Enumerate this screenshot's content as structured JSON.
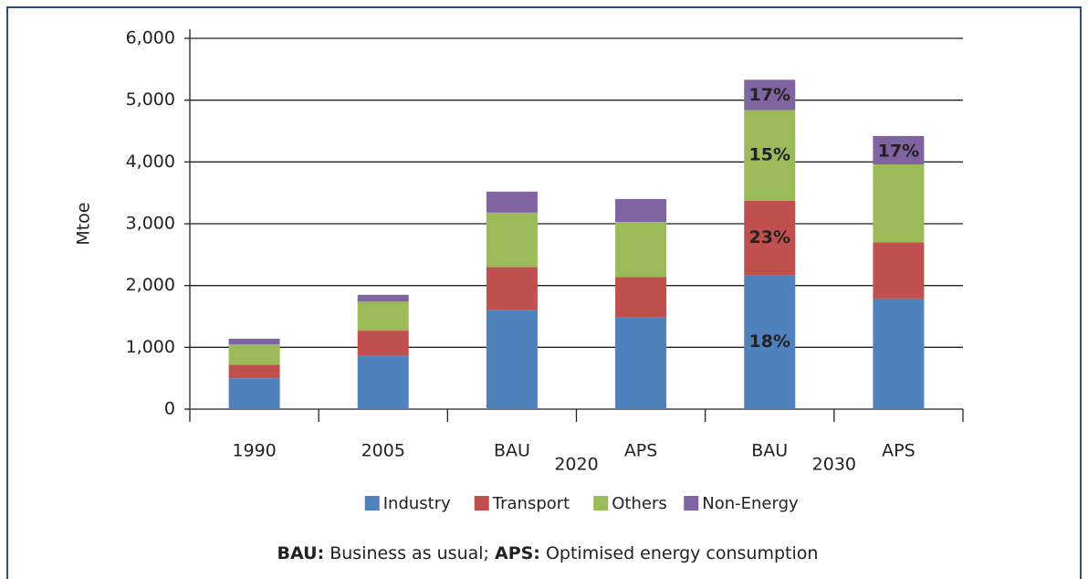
{
  "chart_data": {
    "type": "stacked-bar",
    "y_label": "Mtoe",
    "categories": [
      "1990",
      "2005",
      "BAU",
      "APS",
      "BAU",
      "APS"
    ],
    "groups": [
      {
        "label": "2020",
        "categories": [
          2,
          3
        ]
      },
      {
        "label": "2030",
        "categories": [
          4,
          5
        ]
      }
    ],
    "series": [
      {
        "name": "Industry",
        "color": "#4f81bd",
        "values": [
          500,
          860,
          1600,
          1480,
          2170,
          1790
        ]
      },
      {
        "name": "Transport",
        "color": "#c0504d",
        "values": [
          220,
          410,
          700,
          660,
          1200,
          910
        ]
      },
      {
        "name": "Others",
        "color": "#9bbb59",
        "values": [
          330,
          470,
          880,
          890,
          1470,
          1260
        ]
      },
      {
        "name": "Non-Energy",
        "color": "#8064a2",
        "values": [
          90,
          110,
          340,
          370,
          490,
          460
        ]
      }
    ],
    "annotations": [
      {
        "text": "18%",
        "series": 0,
        "category": 4
      },
      {
        "text": "23%",
        "series": 1,
        "category": 4
      },
      {
        "text": "15%",
        "series": 2,
        "category": 4
      },
      {
        "text": "17%",
        "series": 3,
        "category": 4
      },
      {
        "text": "17%",
        "series": 3,
        "category": 5
      }
    ],
    "ylim": [
      0,
      6000
    ],
    "yticks": [
      0,
      {
        "value": 1000,
        "label": "1,000"
      },
      {
        "value": 2000,
        "label": "2,000"
      },
      {
        "value": 3000,
        "label": "3,000"
      },
      {
        "value": 4000,
        "label": "4,000"
      },
      {
        "value": 5000,
        "label": "5,000"
      },
      {
        "value": 6000,
        "label": "6,000"
      }
    ],
    "grid": true,
    "legend": "bottom",
    "footnote": [
      {
        "text": "BAU:",
        "bold": true
      },
      {
        "text": " Business as usual; ",
        "bold": false
      },
      {
        "text": "APS:",
        "bold": true
      },
      {
        "text": " Optimised energy consumption",
        "bold": false
      }
    ]
  }
}
